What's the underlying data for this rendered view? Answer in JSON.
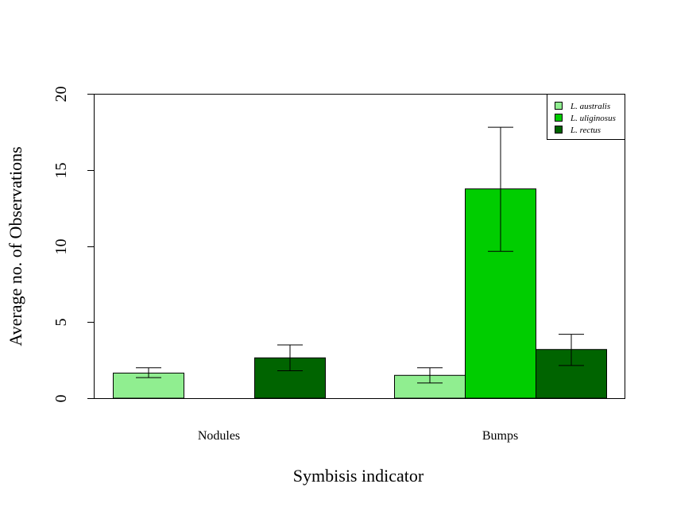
{
  "chart_data": {
    "type": "bar",
    "title": "",
    "xlabel": "Symbisis indicator",
    "ylabel": "Average no. of Observations",
    "categories": [
      "Nodules",
      "Bumps"
    ],
    "ylim": [
      0,
      20
    ],
    "yticks": [
      "0",
      "5",
      "10",
      "15",
      "20"
    ],
    "grid": false,
    "legend_position": "top-right",
    "series": [
      {
        "name": "L. australis",
        "color": "#90ee90",
        "values": [
          1.65,
          1.5
        ],
        "error_low": [
          1.35,
          1.0
        ],
        "error_high": [
          2.0,
          2.0
        ]
      },
      {
        "name": "L. uliginosus",
        "color": "#00cd00",
        "values": [
          0,
          13.75
        ],
        "error_low": [
          null,
          9.65
        ],
        "error_high": [
          null,
          17.8
        ]
      },
      {
        "name": "L. rectus",
        "color": "#006400",
        "values": [
          2.65,
          3.2
        ],
        "error_low": [
          1.8,
          2.15
        ],
        "error_high": [
          3.5,
          4.2
        ]
      }
    ]
  }
}
